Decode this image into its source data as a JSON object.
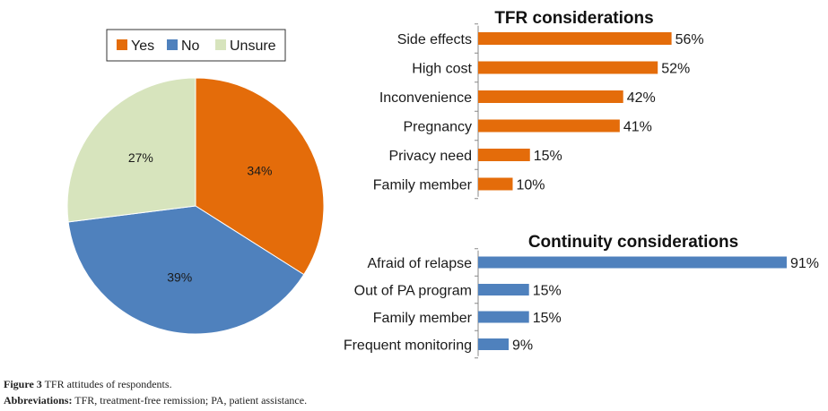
{
  "chart_data": [
    {
      "type": "pie",
      "legend": [
        "Yes",
        "No",
        "Unsure"
      ],
      "legend_position": "top",
      "slices": [
        {
          "label": "Yes",
          "value": 34,
          "display": "34%",
          "color": "#E46C0A"
        },
        {
          "label": "No",
          "value": 39,
          "display": "39%",
          "color": "#4F81BD"
        },
        {
          "label": "Unsure",
          "value": 27,
          "display": "27%",
          "color": "#D7E4BD"
        }
      ]
    },
    {
      "type": "bar",
      "orientation": "horizontal",
      "title": "TFR considerations",
      "color": "#E46C0A",
      "categories": [
        "Side effects",
        "High cost",
        "Inconvenience",
        "Pregnancy",
        "Privacy need",
        "Family member"
      ],
      "values": [
        56,
        52,
        42,
        41,
        15,
        10
      ],
      "value_labels": [
        "56%",
        "52%",
        "42%",
        "41%",
        "15%",
        "10%"
      ]
    },
    {
      "type": "bar",
      "orientation": "horizontal",
      "title": "Continuity considerations",
      "color": "#4F81BD",
      "categories": [
        "Afraid of relapse",
        "Out of PA program",
        "Family member",
        "Frequent monitoring"
      ],
      "values": [
        91,
        15,
        15,
        9
      ],
      "value_labels": [
        "91%",
        "15%",
        "15%",
        "9%"
      ]
    }
  ],
  "caption": {
    "figure_label": "Figure 3",
    "figure_text": "TFR attitudes of respondents.",
    "abbrev_label": "Abbreviations:",
    "abbrev_text": "TFR, treatment-free remission; PA, patient assistance."
  }
}
